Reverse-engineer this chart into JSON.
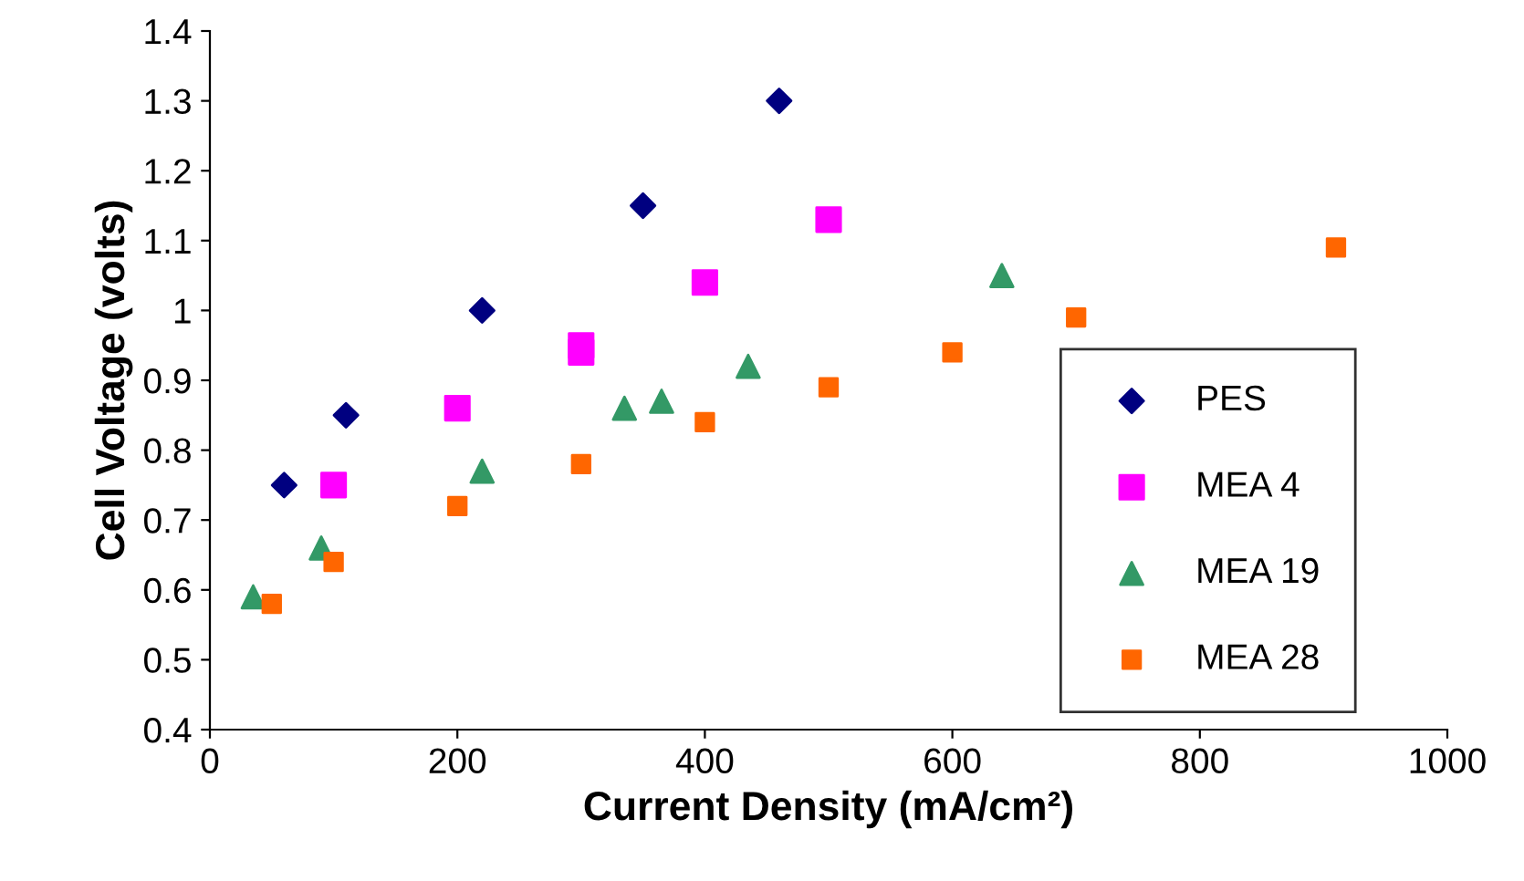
{
  "chart_data": {
    "type": "scatter",
    "xlabel": "Current Density (mA/cm²)",
    "ylabel": "Cell Voltage (volts)",
    "xlim": [
      0,
      1000
    ],
    "xticks": [
      0,
      200,
      400,
      600,
      800,
      1000
    ],
    "ylim": [
      0.4,
      1.4
    ],
    "yticks": [
      {
        "value": 0.4,
        "label": "0.4"
      },
      {
        "value": 0.5,
        "label": "0.5"
      },
      {
        "value": 0.6,
        "label": "0.6"
      },
      {
        "value": 0.7,
        "label": "0.7"
      },
      {
        "value": 0.8,
        "label": "0.8"
      },
      {
        "value": 0.9,
        "label": "0.9"
      },
      {
        "value": 1.0,
        "label": "1"
      },
      {
        "value": 1.1,
        "label": "1.1"
      },
      {
        "value": 1.2,
        "label": "1.2"
      },
      {
        "value": 1.3,
        "label": "1.3"
      },
      {
        "value": 1.4,
        "label": "1.4"
      }
    ],
    "grid": false,
    "legend": "bottom right",
    "series": [
      {
        "name": "PES",
        "color": "#000080",
        "marker": "diamond",
        "x": [
          60,
          110,
          220,
          350,
          460
        ],
        "values": [
          0.75,
          0.85,
          1.0,
          1.15,
          1.3
        ]
      },
      {
        "name": "MEA 4",
        "color": "#ff00ff",
        "marker": "square",
        "x": [
          100,
          200,
          300,
          300,
          400,
          500
        ],
        "values": [
          0.75,
          0.86,
          0.95,
          0.94,
          1.04,
          1.13
        ]
      },
      {
        "name": "MEA 19",
        "color": "#339966",
        "marker": "triangle",
        "x": [
          35,
          90,
          220,
          335,
          365,
          435,
          640
        ],
        "values": [
          0.59,
          0.66,
          0.77,
          0.86,
          0.87,
          0.92,
          1.05
        ]
      },
      {
        "name": "MEA 28",
        "color": "#ff6600",
        "marker": "square",
        "x": [
          50,
          100,
          200,
          300,
          400,
          500,
          600,
          700,
          910
        ],
        "values": [
          0.58,
          0.64,
          0.72,
          0.78,
          0.84,
          0.89,
          0.94,
          0.99,
          1.09
        ]
      }
    ]
  }
}
